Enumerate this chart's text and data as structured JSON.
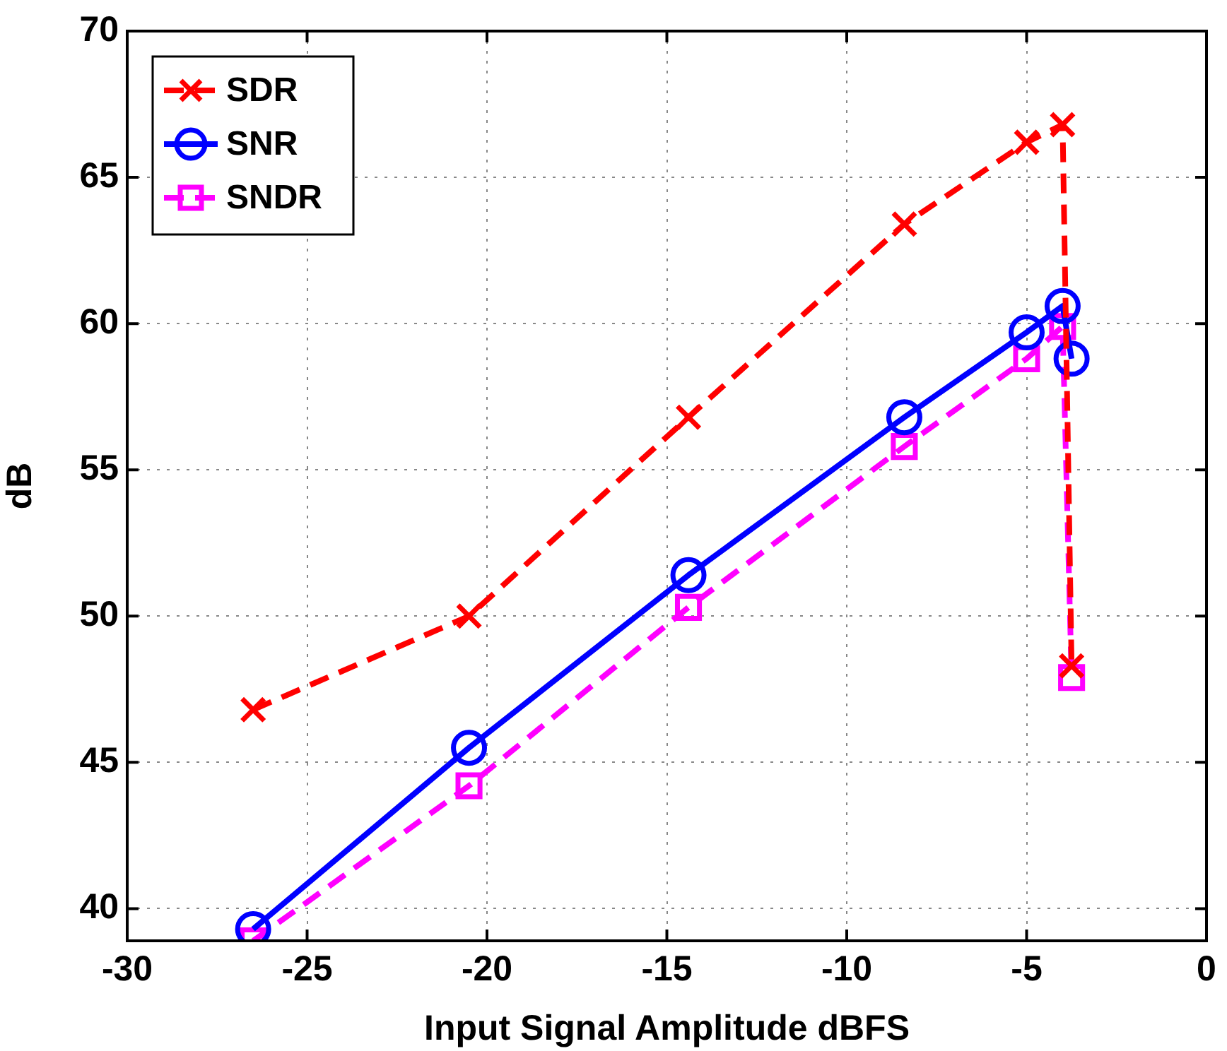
{
  "chart_data": {
    "type": "line",
    "xlabel": "Input Signal Amplitude dBFS",
    "ylabel": "dB",
    "xlim": [
      -30,
      0
    ],
    "xticks": [
      -30,
      -25,
      -20,
      -15,
      -10,
      -5,
      0
    ],
    "ylim": [
      38.9,
      70
    ],
    "yticks": [
      40,
      45,
      50,
      55,
      60,
      65,
      70
    ],
    "grid": true,
    "legend": "top left",
    "series": [
      {
        "name": "SDR",
        "color": "#ff0000",
        "marker": "cross",
        "line_style": "dashed",
        "x": [
          -26.5,
          -20.5,
          -14.4,
          -8.4,
          -5.0,
          -4.0,
          -3.75
        ],
        "values": [
          46.8,
          50.0,
          56.8,
          63.4,
          66.2,
          66.8,
          48.3
        ]
      },
      {
        "name": "SNR",
        "color": "#0000ff",
        "marker": "circle",
        "line_style": "solid",
        "x": [
          -26.5,
          -20.5,
          -14.4,
          -8.4,
          -5.0,
          -4.0,
          -3.75
        ],
        "values": [
          39.3,
          45.5,
          51.4,
          56.8,
          59.7,
          60.6,
          58.8
        ]
      },
      {
        "name": "SNDR",
        "color": "#ff00ff",
        "marker": "square",
        "line_style": "dashed",
        "x": [
          -26.5,
          -20.5,
          -14.4,
          -8.4,
          -5.0,
          -4.0,
          -3.75
        ],
        "values": [
          38.9,
          44.2,
          50.3,
          55.8,
          58.8,
          59.9,
          47.9
        ]
      }
    ]
  }
}
